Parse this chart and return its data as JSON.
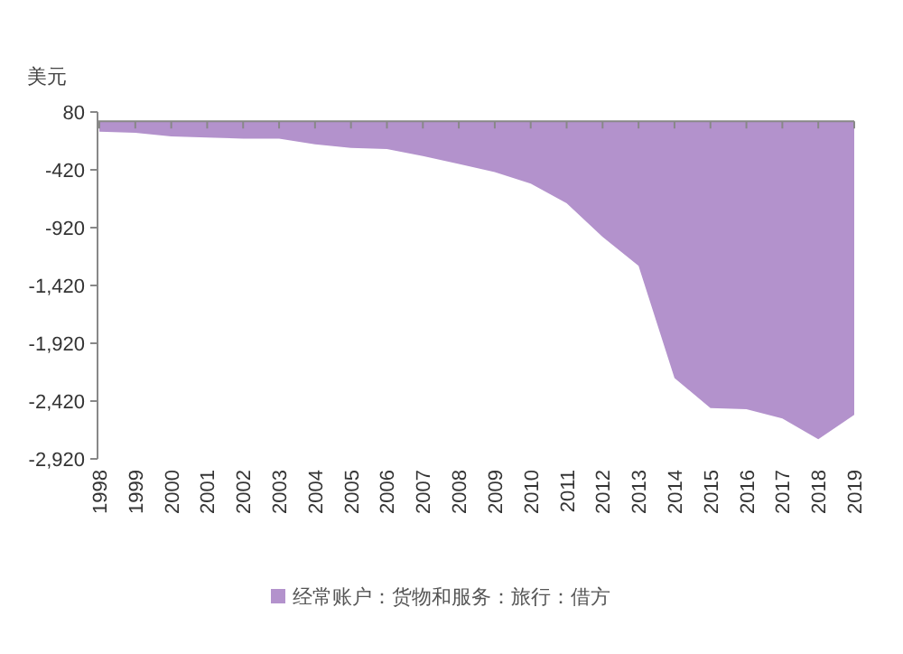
{
  "chart_data": {
    "type": "area",
    "ylabel": "美元",
    "categories": [
      "1998",
      "1999",
      "2000",
      "2001",
      "2002",
      "2003",
      "2004",
      "2005",
      "2006",
      "2007",
      "2008",
      "2009",
      "2010",
      "2011",
      "2012",
      "2013",
      "2014",
      "2015",
      "2016",
      "2017",
      "2018",
      "2019"
    ],
    "series": [
      {
        "name": "经常账户：货物和服务：旅行：借方",
        "color": "#b392cc",
        "values": [
          -90,
          -100,
          -130,
          -140,
          -150,
          -150,
          -200,
          -230,
          -240,
          -300,
          -370,
          -440,
          -540,
          -710,
          -1000,
          -1250,
          -2220,
          -2480,
          -2490,
          -2570,
          -2750,
          -2540
        ]
      }
    ],
    "ylim": [
      -2920,
      80
    ],
    "yticks": [
      80,
      {
        "value": -420,
        "label": "-420"
      },
      {
        "value": -920,
        "label": "-920"
      },
      {
        "value": -1420,
        "label": "-1,420"
      },
      {
        "value": -1920,
        "label": "-1,920"
      },
      {
        "value": -2420,
        "label": "-2,420"
      },
      {
        "value": -2920,
        "label": "-2,920"
      }
    ],
    "grid": false,
    "legend": "bottom"
  }
}
